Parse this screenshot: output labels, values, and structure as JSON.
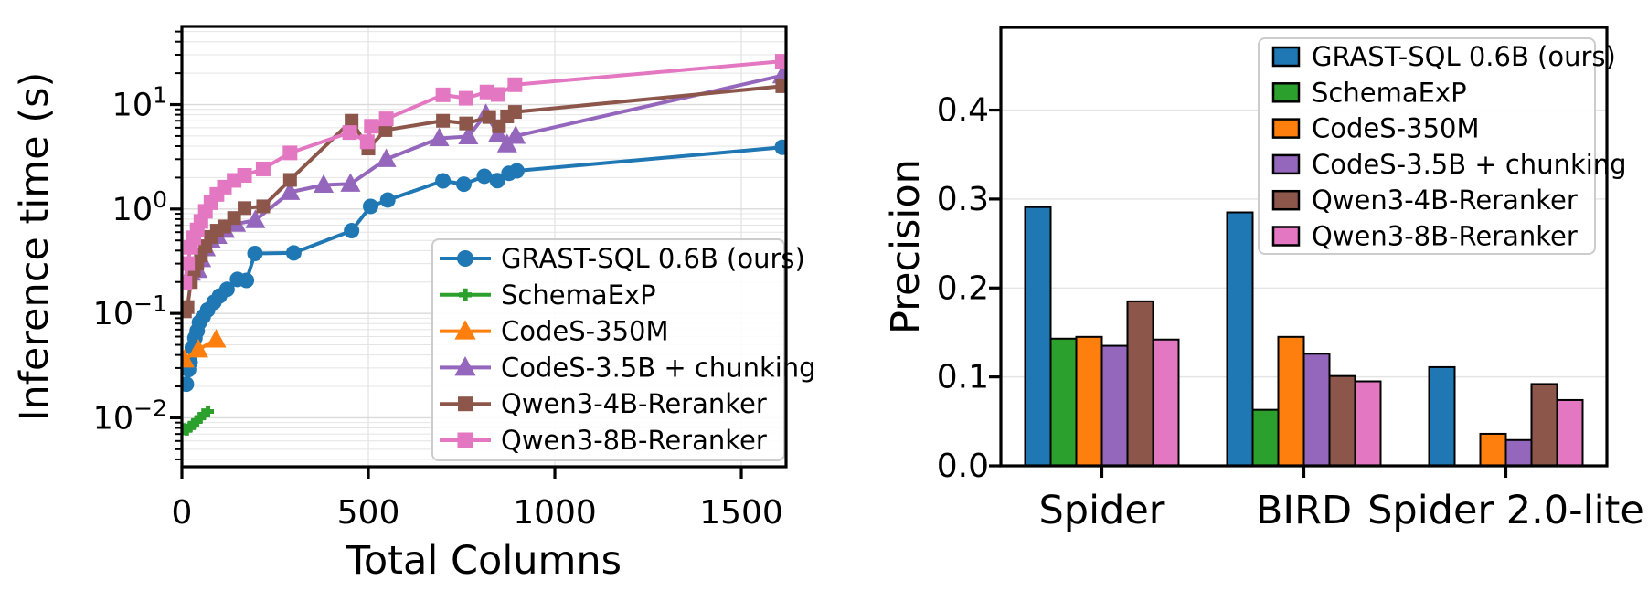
{
  "figure": {
    "background": "#ffffff"
  },
  "colors": {
    "blue": "#1f77b4",
    "green": "#2ca02c",
    "orange": "#ff7f0e",
    "purple": "#9467bd",
    "brown": "#8c564b",
    "pink": "#e377c2",
    "grid": "#e4e4e4",
    "frame": "#000000",
    "legend_border": "#cccccc"
  },
  "chart_data": [
    {
      "id": "inference-time",
      "type": "line",
      "xlabel": "Total Columns",
      "ylabel": "Inference time (s)",
      "yscale": "log",
      "xlim": [
        0,
        1620
      ],
      "ylim": [
        0.0034,
        56
      ],
      "x_ticks": [
        0,
        500,
        1000,
        1500
      ],
      "x_tick_labels": [
        "0",
        "500",
        "1000",
        "1500"
      ],
      "y_ticks": [
        {
          "value": 0.01,
          "base": "10",
          "exp": "−2"
        },
        {
          "value": 0.1,
          "base": "10",
          "exp": "−1"
        },
        {
          "value": 1,
          "base": "10",
          "exp": "0"
        },
        {
          "value": 10,
          "base": "10",
          "exp": "1"
        }
      ],
      "grid": true,
      "legend_position": "lower right",
      "series": [
        {
          "name": "GRAST-SQL 0.6B (ours)",
          "color": "#1f77b4",
          "marker": "circle",
          "marker_size": 17,
          "points": [
            [
              12,
              0.021
            ],
            [
              18,
              0.029
            ],
            [
              22,
              0.034
            ],
            [
              28,
              0.047
            ],
            [
              35,
              0.058
            ],
            [
              41,
              0.068
            ],
            [
              47,
              0.082
            ],
            [
              57,
              0.093
            ],
            [
              69,
              0.108
            ],
            [
              86,
              0.128
            ],
            [
              101,
              0.147
            ],
            [
              121,
              0.17
            ],
            [
              149,
              0.212
            ],
            [
              173,
              0.207
            ],
            [
              196,
              0.375
            ],
            [
              300,
              0.38
            ],
            [
              455,
              0.62
            ],
            [
              506,
              1.06
            ],
            [
              552,
              1.22
            ],
            [
              700,
              1.86
            ],
            [
              756,
              1.73
            ],
            [
              811,
              2.06
            ],
            [
              846,
              1.87
            ],
            [
              877,
              2.2
            ],
            [
              898,
              2.32
            ],
            [
              1610,
              3.9
            ]
          ]
        },
        {
          "name": "SchemaExP",
          "color": "#2ca02c",
          "marker": "plus",
          "marker_size": 13,
          "points": [
            [
              5,
              0.0078
            ],
            [
              13,
              0.0077
            ],
            [
              22,
              0.0082
            ],
            [
              31,
              0.0087
            ],
            [
              40,
              0.0093
            ],
            [
              49,
              0.01
            ],
            [
              58,
              0.0108
            ],
            [
              70,
              0.0115
            ]
          ]
        },
        {
          "name": "CodeS-350M",
          "color": "#ff7f0e",
          "marker": "triangle",
          "marker_size": 19,
          "points": [
            [
              7,
              0.036
            ],
            [
              44,
              0.045
            ],
            [
              92,
              0.056
            ]
          ]
        },
        {
          "name": "CodeS-3.5B + chunking",
          "color": "#9467bd",
          "marker": "triangle",
          "marker_size": 19,
          "points": [
            [
              15,
              0.21
            ],
            [
              24,
              0.245
            ],
            [
              33,
              0.28
            ],
            [
              42,
              0.26
            ],
            [
              52,
              0.33
            ],
            [
              64,
              0.42
            ],
            [
              78,
              0.5
            ],
            [
              95,
              0.55
            ],
            [
              115,
              0.63
            ],
            [
              145,
              0.72
            ],
            [
              197,
              0.78
            ],
            [
              290,
              1.45
            ],
            [
              380,
              1.7
            ],
            [
              452,
              1.74
            ],
            [
              548,
              3.0
            ],
            [
              690,
              4.75
            ],
            [
              768,
              4.95
            ],
            [
              815,
              8.1
            ],
            [
              848,
              5.2
            ],
            [
              872,
              4.15
            ],
            [
              895,
              5.0
            ],
            [
              1610,
              19.0
            ]
          ]
        },
        {
          "name": "Qwen3-4B-Reranker",
          "color": "#8c564b",
          "marker": "square",
          "marker_size": 15,
          "points": [
            [
              8,
              0.105
            ],
            [
              15,
              0.115
            ],
            [
              24,
              0.2
            ],
            [
              32,
              0.26
            ],
            [
              41,
              0.3
            ],
            [
              51,
              0.36
            ],
            [
              63,
              0.44
            ],
            [
              78,
              0.54
            ],
            [
              94,
              0.62
            ],
            [
              114,
              0.68
            ],
            [
              140,
              0.82
            ],
            [
              168,
              1.02
            ],
            [
              218,
              1.06
            ],
            [
              290,
              1.9
            ],
            [
              455,
              7.0
            ],
            [
              500,
              3.8
            ],
            [
              546,
              5.7
            ],
            [
              700,
              7.0
            ],
            [
              762,
              6.6
            ],
            [
              824,
              7.6
            ],
            [
              850,
              6.2
            ],
            [
              872,
              7.7
            ],
            [
              893,
              8.5
            ],
            [
              1610,
              15.0
            ]
          ]
        },
        {
          "name": "Qwen3-8B-Reranker",
          "color": "#e377c2",
          "marker": "square",
          "marker_size": 16,
          "points": [
            [
              8,
              0.195
            ],
            [
              15,
              0.3
            ],
            [
              24,
              0.43
            ],
            [
              32,
              0.53
            ],
            [
              41,
              0.63
            ],
            [
              51,
              0.76
            ],
            [
              63,
              0.95
            ],
            [
              78,
              1.15
            ],
            [
              94,
              1.38
            ],
            [
              114,
              1.62
            ],
            [
              140,
              1.88
            ],
            [
              168,
              2.1
            ],
            [
              218,
              2.42
            ],
            [
              290,
              3.45
            ],
            [
              450,
              5.4
            ],
            [
              497,
              4.4
            ],
            [
              508,
              6.2
            ],
            [
              548,
              7.3
            ],
            [
              700,
              12.4
            ],
            [
              762,
              11.5
            ],
            [
              818,
              13.2
            ],
            [
              848,
              12.5
            ],
            [
              893,
              15.5
            ],
            [
              1610,
              26.0
            ]
          ]
        }
      ]
    },
    {
      "id": "precision",
      "type": "bar",
      "ylabel": "Precision",
      "categories": [
        "Spider",
        "BIRD",
        "Spider 2.0-lite"
      ],
      "ylim": [
        0,
        0.493
      ],
      "y_ticks": [
        0.0,
        0.1,
        0.2,
        0.3,
        0.4
      ],
      "y_tick_labels": [
        "0.0",
        "0.1",
        "0.2",
        "0.3",
        "0.4"
      ],
      "grid": true,
      "legend_position": "upper right",
      "series": [
        {
          "name": "GRAST-SQL 0.6B (ours)",
          "color": "#1f77b4",
          "values": [
            0.291,
            0.285,
            0.111
          ]
        },
        {
          "name": "SchemaExP",
          "color": "#2ca02c",
          "values": [
            0.143,
            0.063,
            0
          ]
        },
        {
          "name": "CodeS-350M",
          "color": "#ff7f0e",
          "values": [
            0.145,
            0.145,
            0.036
          ]
        },
        {
          "name": "CodeS-3.5B + chunking",
          "color": "#9467bd",
          "values": [
            0.135,
            0.126,
            0.029
          ]
        },
        {
          "name": "Qwen3-4B-Reranker",
          "color": "#8c564b",
          "values": [
            0.185,
            0.101,
            0.092
          ]
        },
        {
          "name": "Qwen3-8B-Reranker",
          "color": "#e377c2",
          "values": [
            0.142,
            0.095,
            0.074
          ]
        }
      ]
    }
  ]
}
